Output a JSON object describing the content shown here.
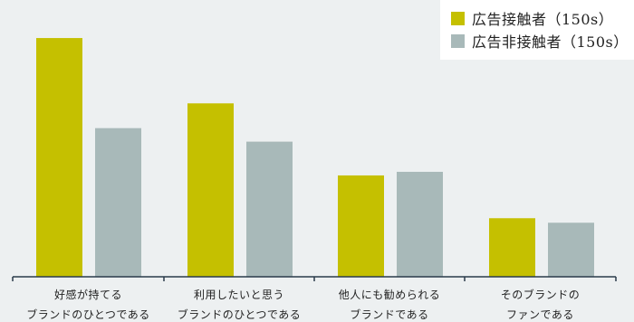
{
  "chart_data": {
    "type": "bar",
    "categories": [
      [
        "好感が持てる",
        "ブランドのひとつである"
      ],
      [
        "利用したいと思う",
        "ブランドのひとつである"
      ],
      [
        "他人にも勧められる",
        "ブランドである"
      ],
      [
        "そのブランドの",
        "ファンである"
      ]
    ],
    "series": [
      {
        "name": "広告接触者（150s）",
        "color": "#c5c000",
        "values": [
          53,
          38.5,
          22.5,
          13
        ]
      },
      {
        "name": "広告非接触者（150s）",
        "color": "#a8b9b9",
        "values": [
          33,
          30,
          23.3,
          12
        ]
      }
    ],
    "ylim": [
      0,
      55
    ],
    "legend_position": "top-right",
    "grid": false
  }
}
